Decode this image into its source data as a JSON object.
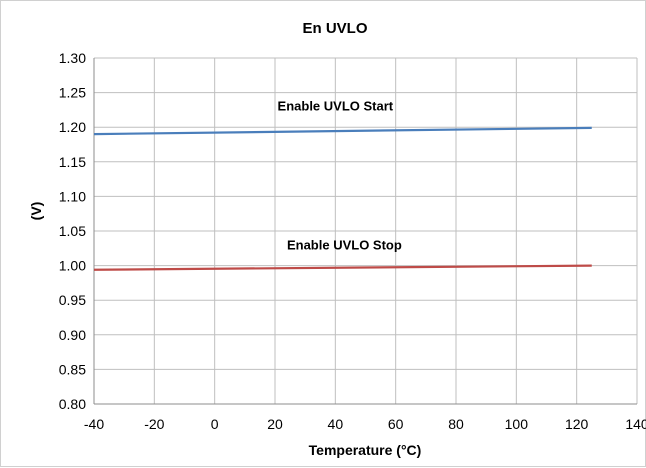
{
  "chart_data": {
    "type": "line",
    "title": "En UVLO",
    "xlabel": "Temperature (°C)",
    "ylabel": "(V)",
    "xlim": [
      -40,
      140
    ],
    "ylim": [
      0.8,
      1.3
    ],
    "x_ticks": [
      -40,
      -20,
      0,
      20,
      40,
      60,
      80,
      100,
      120,
      140
    ],
    "y_ticks": [
      "0.80",
      "0.85",
      "0.90",
      "0.95",
      "1.00",
      "1.05",
      "1.10",
      "1.15",
      "1.20",
      "1.25",
      "1.30"
    ],
    "grid": true,
    "legend": "none",
    "series": [
      {
        "name": "Enable UVLO Start",
        "color": "#4a7ebb",
        "x": [
          -40,
          125
        ],
        "y": [
          1.19,
          1.199
        ],
        "label_at": [
          40,
          1.224
        ]
      },
      {
        "name": "Enable UVLO Stop",
        "color": "#be4b48",
        "x": [
          -40,
          125
        ],
        "y": [
          0.994,
          1.0
        ],
        "label_at": [
          43,
          1.023
        ]
      }
    ]
  }
}
